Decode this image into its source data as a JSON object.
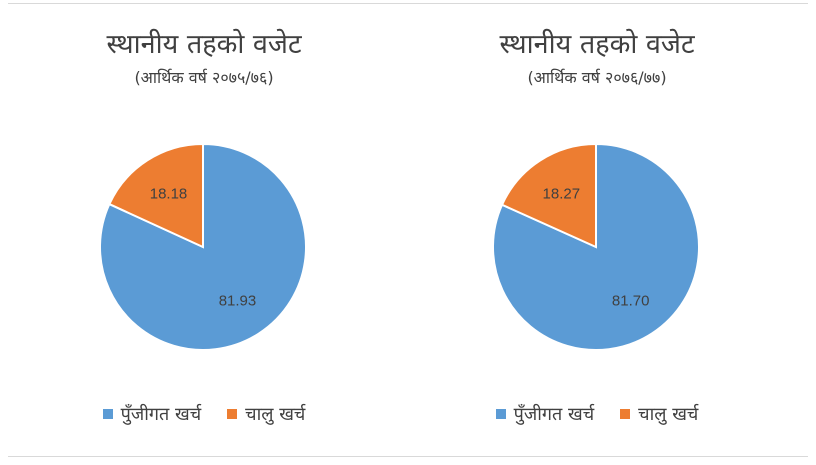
{
  "chart_data": [
    {
      "type": "pie",
      "title": "स्थानीय तहको वजेट",
      "subtitle": "(आर्थिक वर्ष २०७५/७६)",
      "categories": [
        "पुँजीगत खर्च",
        "चालु खर्च"
      ],
      "values": [
        81.93,
        18.18
      ],
      "labels": [
        "81.93",
        "18.18"
      ],
      "colors": [
        "#5b9bd5",
        "#ed7d31"
      ],
      "legend": "bottom"
    },
    {
      "type": "pie",
      "title": "स्थानीय तहको वजेट",
      "subtitle": "(आर्थिक वर्ष २०७६/७७)",
      "categories": [
        "पुँजीगत खर्च",
        "चालु खर्च"
      ],
      "values": [
        81.7,
        18.27
      ],
      "labels": [
        "81.70",
        "18.27"
      ],
      "colors": [
        "#5b9bd5",
        "#ed7d31"
      ],
      "legend": "bottom"
    }
  ]
}
